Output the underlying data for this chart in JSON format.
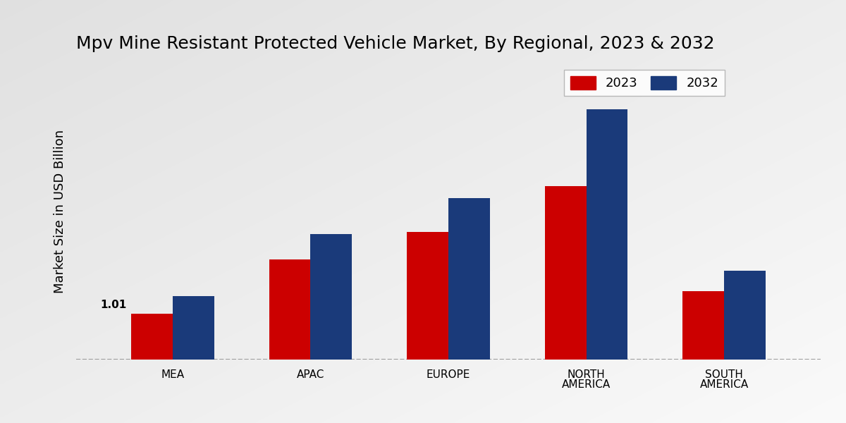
{
  "title": "Mpv Mine Resistant Protected Vehicle Market, By Regional, 2023 & 2032",
  "categories": [
    "MEA",
    "APAC",
    "EUROPE",
    "NORTH\nAMERICA",
    "SOUTH\nAMERICA"
  ],
  "values_2023": [
    1.01,
    2.2,
    2.8,
    3.8,
    1.5
  ],
  "values_2032": [
    1.4,
    2.75,
    3.55,
    5.5,
    1.95
  ],
  "color_2023": "#cc0000",
  "color_2032": "#1a3a7a",
  "ylabel": "Market Size in USD Billion",
  "ylim": [
    0,
    6.5
  ],
  "bar_width": 0.3,
  "annotation_text": "1.01",
  "title_fontsize": 18,
  "axis_label_fontsize": 13,
  "tick_fontsize": 11,
  "legend_fontsize": 13,
  "bg_light": "#f0f0f0",
  "bg_dark": "#c0c0c0"
}
